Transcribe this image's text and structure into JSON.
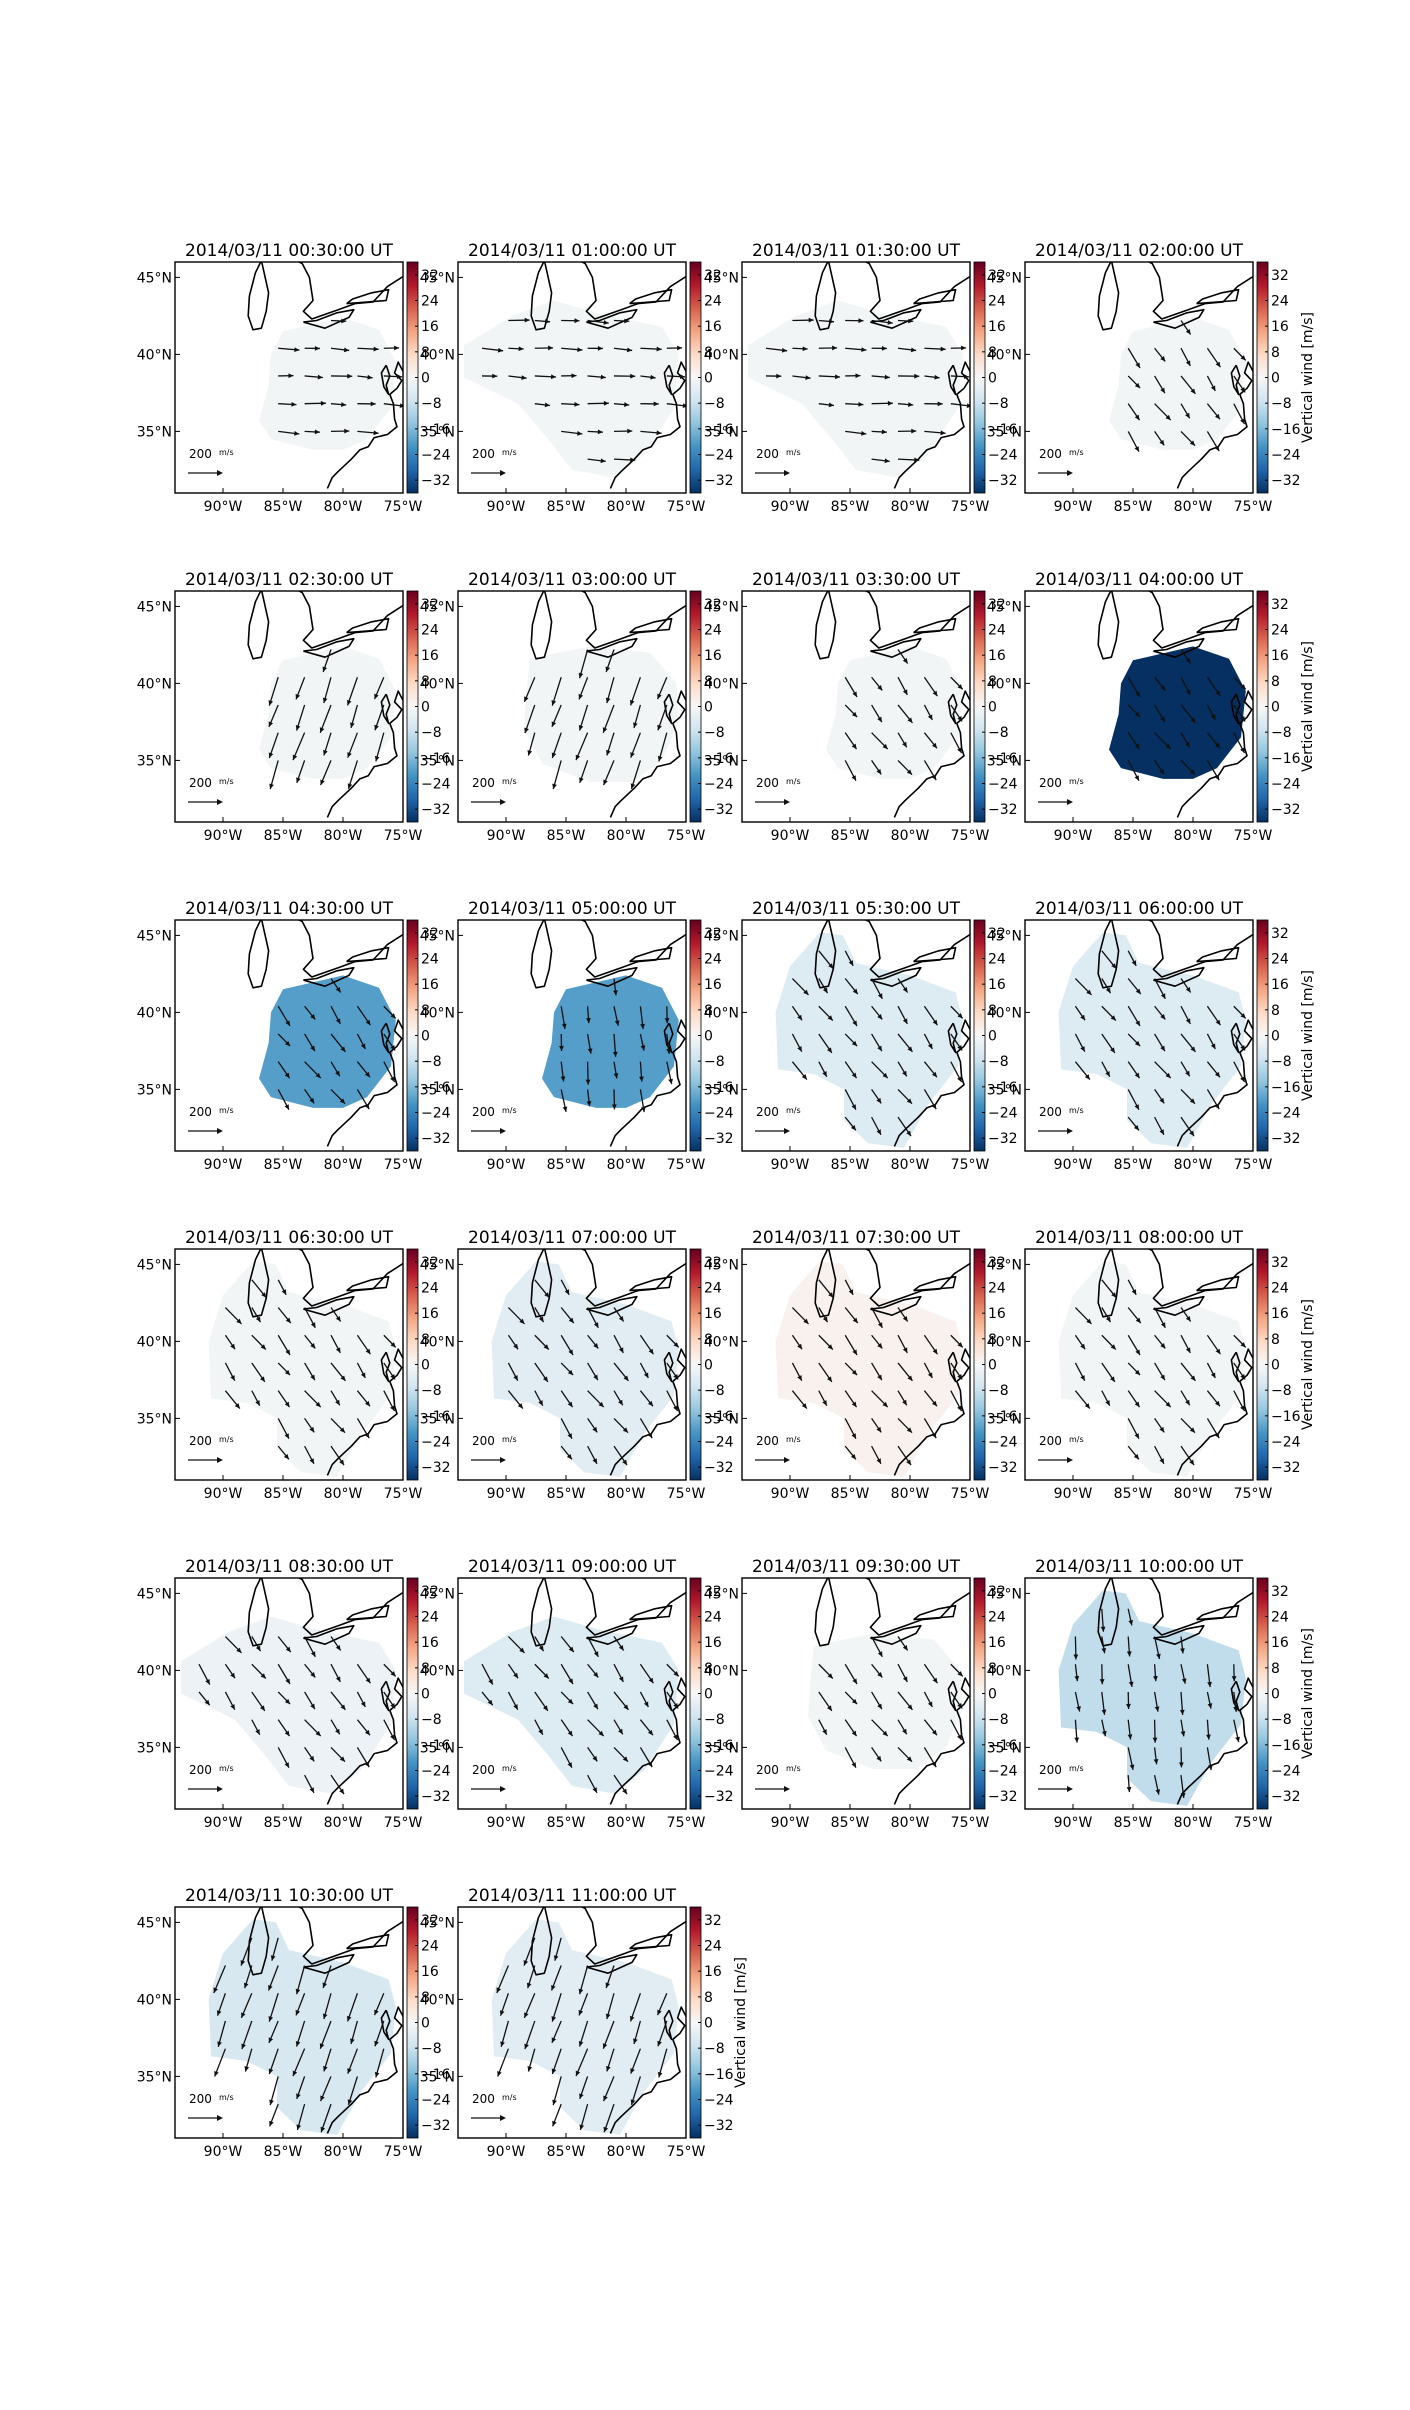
{
  "figure": {
    "colorbar_label": "Vertical wind [m/s]",
    "colorbar_ticks": [
      "32",
      "24",
      "16",
      "8",
      "0",
      "−8",
      "−16",
      "−24",
      "−32"
    ],
    "colorbar_range": [
      -36,
      36
    ],
    "colormap": "RdBu_r",
    "lon_ticks": [
      "90°W",
      "85°W",
      "80°W",
      "75°W"
    ],
    "lat_ticks": [
      "45°N",
      "40°N",
      "35°N"
    ],
    "reference_arrow_label": "200 m/s"
  },
  "chart_data": {
    "type": "heatmap",
    "description_of_fields": "Per panel: vertical wind (shaded fill, m/s) and horizontal wind vectors over the eastern United States",
    "lon_range": [
      -94,
      -75
    ],
    "lat_range": [
      31,
      46
    ],
    "units": "m/s",
    "panels": [
      {
        "title": "2014/03/11 00:30:00 UT",
        "vertical_wind": -1,
        "region": "small",
        "arrows": "east"
      },
      {
        "title": "2014/03/11 01:00:00 UT",
        "vertical_wind": -1,
        "region": "wide",
        "arrows": "east"
      },
      {
        "title": "2014/03/11 01:30:00 UT",
        "vertical_wind": -1,
        "region": "wide",
        "arrows": "east"
      },
      {
        "title": "2014/03/11 02:00:00 UT",
        "vertical_wind": -1,
        "region": "small",
        "arrows": "southeast"
      },
      {
        "title": "2014/03/11 02:30:00 UT",
        "vertical_wind": -1,
        "region": "small",
        "arrows": "southwest"
      },
      {
        "title": "2014/03/11 03:00:00 UT",
        "vertical_wind": -1,
        "region": "medium",
        "arrows": "southwest"
      },
      {
        "title": "2014/03/11 03:30:00 UT",
        "vertical_wind": -1,
        "region": "small",
        "arrows": "southeast"
      },
      {
        "title": "2014/03/11 04:00:00 UT",
        "vertical_wind": -36,
        "region": "small",
        "arrows": "southeast"
      },
      {
        "title": "2014/03/11 04:30:00 UT",
        "vertical_wind": -20,
        "region": "small",
        "arrows": "southeast"
      },
      {
        "title": "2014/03/11 05:00:00 UT",
        "vertical_wind": -20,
        "region": "small",
        "arrows": "south"
      },
      {
        "title": "2014/03/11 05:30:00 UT",
        "vertical_wind": -5,
        "region": "large",
        "arrows": "southeast"
      },
      {
        "title": "2014/03/11 06:00:00 UT",
        "vertical_wind": -5,
        "region": "large",
        "arrows": "southeast"
      },
      {
        "title": "2014/03/11 06:30:00 UT",
        "vertical_wind": -1,
        "region": "large",
        "arrows": "southeast"
      },
      {
        "title": "2014/03/11 07:00:00 UT",
        "vertical_wind": -4,
        "region": "large",
        "arrows": "southeast"
      },
      {
        "title": "2014/03/11 07:30:00 UT",
        "vertical_wind": 1.5,
        "region": "large",
        "arrows": "southeast"
      },
      {
        "title": "2014/03/11 08:00:00 UT",
        "vertical_wind": -1,
        "region": "large",
        "arrows": "southeast"
      },
      {
        "title": "2014/03/11 08:30:00 UT",
        "vertical_wind": -2,
        "region": "wide",
        "arrows": "southeast"
      },
      {
        "title": "2014/03/11 09:00:00 UT",
        "vertical_wind": -5,
        "region": "wide",
        "arrows": "southeast"
      },
      {
        "title": "2014/03/11 09:30:00 UT",
        "vertical_wind": -1,
        "region": "medium",
        "arrows": "southeast"
      },
      {
        "title": "2014/03/11 10:00:00 UT",
        "vertical_wind": -9,
        "region": "large",
        "arrows": "south"
      },
      {
        "title": "2014/03/11 10:30:00 UT",
        "vertical_wind": -6,
        "region": "large",
        "arrows": "southwest"
      },
      {
        "title": "2014/03/11 11:00:00 UT",
        "vertical_wind": -4,
        "region": "large",
        "arrows": "southwest"
      }
    ]
  }
}
